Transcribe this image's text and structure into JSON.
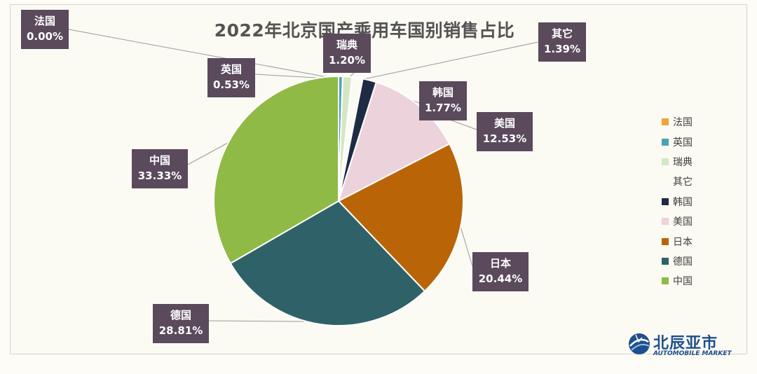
{
  "chart_data": {
    "type": "pie",
    "title": "2022年北京国产乘用车国别销售占比",
    "legend_position": "right",
    "slices": [
      {
        "name": "法国",
        "value": 0.0,
        "label_value": "0.00%",
        "color": "#f2a33a"
      },
      {
        "name": "英国",
        "value": 0.53,
        "label_value": "0.53%",
        "color": "#4aa3b5"
      },
      {
        "name": "瑞典",
        "value": 1.2,
        "label_value": "1.20%",
        "color": "#d5e6c4"
      },
      {
        "name": "其它",
        "value": 1.39,
        "label_value": "1.39%",
        "color": "#fbfaf3"
      },
      {
        "name": "韩国",
        "value": 1.77,
        "label_value": "1.77%",
        "color": "#1f2a44"
      },
      {
        "name": "美国",
        "value": 12.53,
        "label_value": "12.53%",
        "color": "#ecd2da"
      },
      {
        "name": "日本",
        "value": 20.44,
        "label_value": "20.44%",
        "color": "#b96507"
      },
      {
        "name": "德国",
        "value": 28.81,
        "label_value": "28.81%",
        "color": "#2f6268"
      },
      {
        "name": "中国",
        "value": 33.33,
        "label_value": "33.33%",
        "color": "#8fba45"
      }
    ]
  },
  "brand": {
    "name": "北辰亚市",
    "subtitle": "AUTOMOBILE MARKET",
    "icon": "globe-logo-icon"
  }
}
